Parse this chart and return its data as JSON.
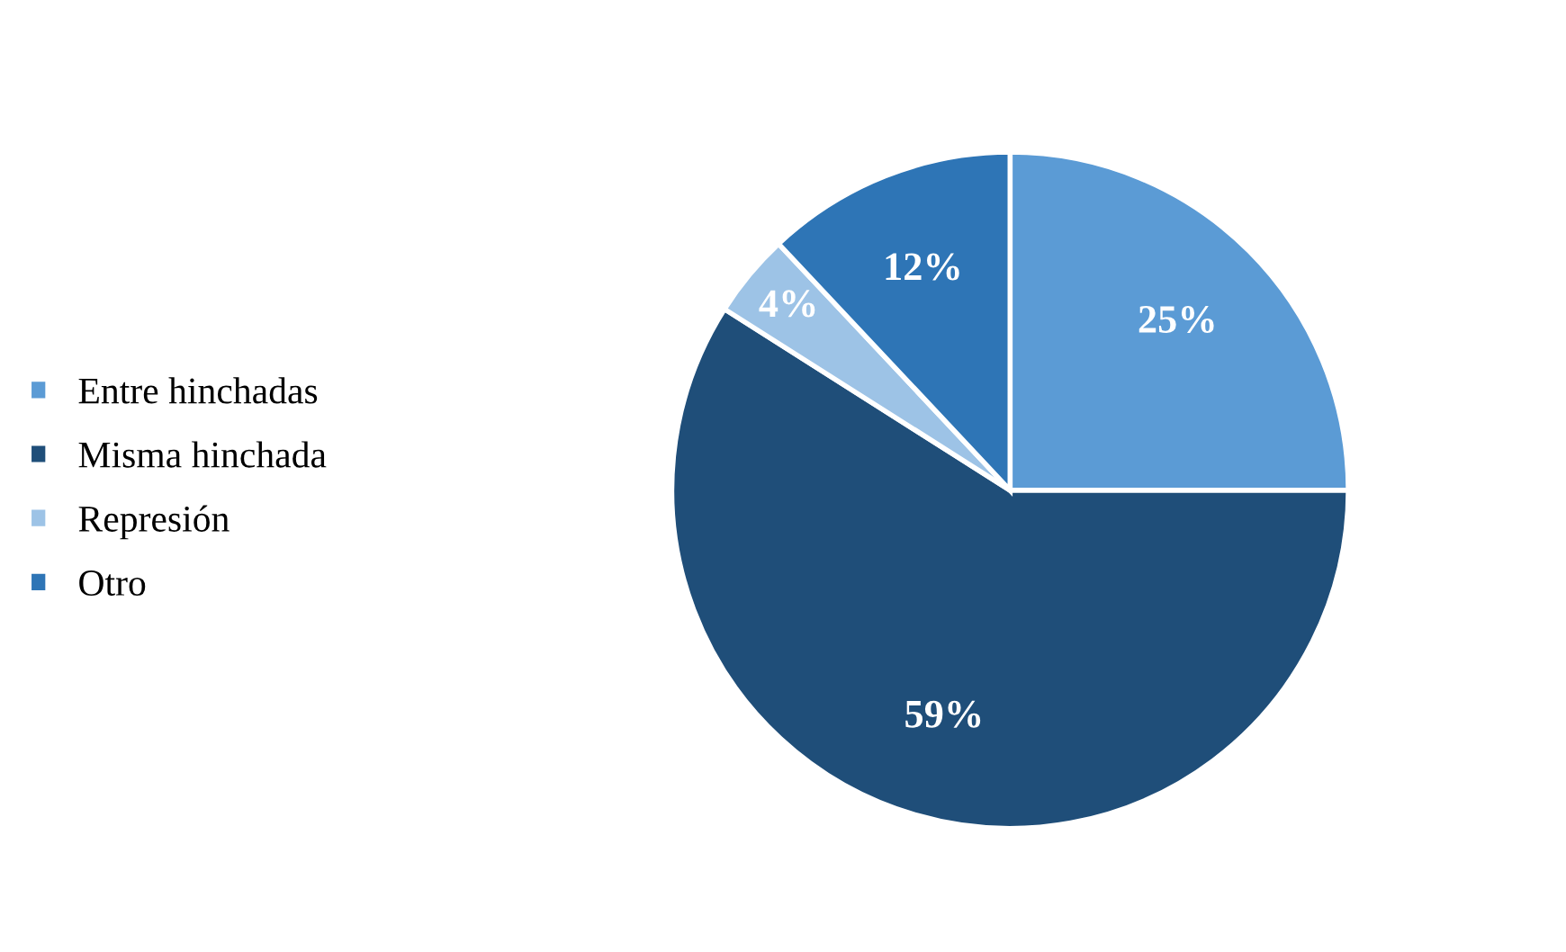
{
  "chart_data": {
    "type": "pie",
    "categories": [
      "Entre hinchadas",
      "Misma hinchada",
      "Represión",
      "Otro"
    ],
    "values": [
      25,
      59,
      4,
      12
    ],
    "colors": [
      "#5b9bd5",
      "#1f4e79",
      "#9dc3e6",
      "#2e75b6"
    ],
    "value_labels": [
      "25%",
      "59%",
      "4%",
      "12%"
    ],
    "legend": "left"
  }
}
